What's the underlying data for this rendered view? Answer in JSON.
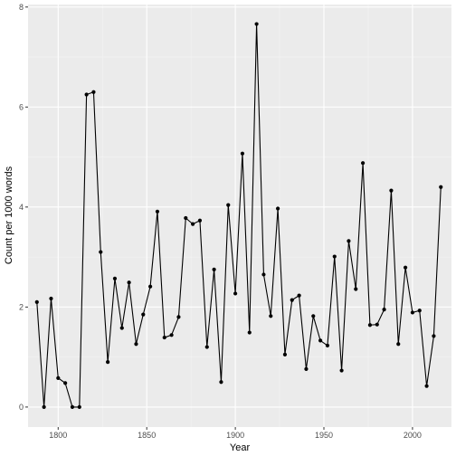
{
  "chart_data": {
    "type": "line",
    "title": "",
    "xlabel": "Year",
    "ylabel": "Count per 1000 words",
    "xlim": [
      1783,
      2022
    ],
    "ylim": [
      -0.4,
      8.05
    ],
    "xticks": [
      1800,
      1850,
      1900,
      1950,
      2000
    ],
    "yticks": [
      0,
      2,
      4,
      6,
      8
    ],
    "grid": true,
    "legend": "none",
    "colors": {
      "panel": "#ebebeb",
      "grid_major": "#ffffff",
      "line": "#000000",
      "point": "#000000"
    },
    "series": [
      {
        "x": [
          1788,
          1792,
          1796,
          1800,
          1804,
          1808,
          1812,
          1816,
          1820,
          1824,
          1828,
          1832,
          1836,
          1840,
          1844,
          1848,
          1852,
          1856,
          1860,
          1864,
          1868,
          1872,
          1876,
          1880,
          1884,
          1888,
          1892,
          1896,
          1900,
          1904,
          1908,
          1912,
          1916,
          1920,
          1924,
          1928,
          1932,
          1936,
          1940,
          1944,
          1948,
          1952,
          1956,
          1960,
          1964,
          1968,
          1972,
          1976,
          1980,
          1984,
          1988,
          1992,
          1996,
          2000,
          2004,
          2008,
          2012,
          2016
        ],
        "values": [
          2.1,
          0.0,
          2.17,
          0.58,
          0.48,
          0.0,
          0.0,
          6.25,
          6.3,
          3.1,
          0.9,
          2.57,
          1.58,
          2.49,
          1.26,
          1.85,
          2.41,
          3.91,
          1.39,
          1.44,
          1.8,
          3.78,
          3.66,
          3.73,
          1.2,
          2.75,
          0.5,
          4.04,
          2.27,
          5.07,
          1.49,
          7.66,
          2.65,
          1.82,
          3.97,
          1.05,
          2.14,
          2.23,
          0.76,
          1.82,
          1.33,
          1.23,
          3.01,
          0.73,
          3.32,
          2.36,
          4.88,
          1.64,
          1.65,
          1.95,
          4.33,
          1.26,
          2.79,
          1.89,
          1.93,
          0.42,
          1.42,
          4.4
        ]
      }
    ]
  }
}
